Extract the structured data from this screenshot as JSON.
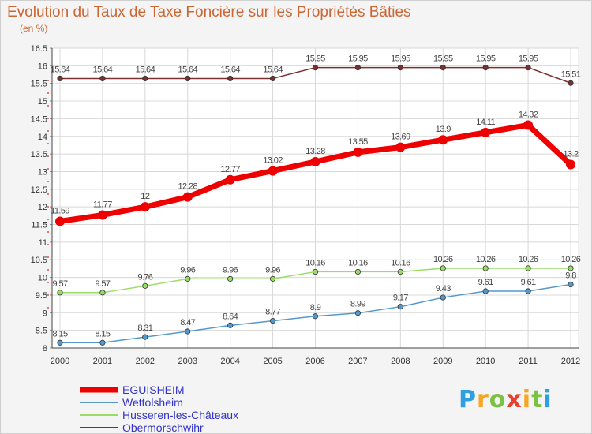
{
  "header": {
    "title": "Evolution du Taux de Taxe Foncière sur les Propriétés Bâties",
    "subtitle": "(en %)"
  },
  "logo": {
    "text": "Proxiti",
    "letters": [
      {
        "ch": "P",
        "color": "#2e9fe0"
      },
      {
        "ch": "r",
        "color": "#f5a623"
      },
      {
        "ch": "o",
        "color": "#7bc142"
      },
      {
        "ch": "x",
        "color": "#e8402a"
      },
      {
        "ch": "i",
        "color": "#f5a623"
      },
      {
        "ch": "t",
        "color": "#7bc142"
      },
      {
        "ch": "i",
        "color": "#2e9fe0"
      }
    ]
  },
  "chart_data": {
    "type": "line",
    "title": "Evolution du Taux de Taxe Foncière sur les Propriétés Bâties",
    "ylabel": "(en %)",
    "xlabel": "",
    "x": [
      "2000",
      "2001",
      "2002",
      "2003",
      "2004",
      "2005",
      "2006",
      "2007",
      "2008",
      "2009",
      "2010",
      "2011",
      "2012"
    ],
    "yticks": [
      "8",
      "8.5",
      "9",
      "9.5",
      "10",
      "10.5",
      "11",
      "11.5",
      "12",
      "12.5",
      "13",
      "13.5",
      "14",
      "14.5",
      "15",
      "15.5",
      "16",
      "16.5"
    ],
    "ylim": [
      8,
      16.5
    ],
    "grid": true,
    "legend_position": "bottom-left",
    "series": [
      {
        "name": "Obermorschwihr",
        "color": "#7a3030",
        "stroke": 1.5,
        "marker": 3.2,
        "values": [
          15.64,
          15.64,
          15.64,
          15.64,
          15.64,
          15.64,
          15.95,
          15.95,
          15.95,
          15.95,
          15.95,
          15.95,
          15.51
        ],
        "labels": [
          "15.64",
          "15.64",
          "15.64",
          "15.64",
          "15.64",
          "15.64",
          "15.95",
          "15.95",
          "15.95",
          "15.95",
          "15.95",
          "15.95",
          "15.51"
        ]
      },
      {
        "name": "EGUISHEIM",
        "color": "#ee0000",
        "stroke": 7,
        "marker": 6,
        "values": [
          11.59,
          11.77,
          12,
          12.28,
          12.77,
          13.02,
          13.28,
          13.55,
          13.69,
          13.9,
          14.11,
          14.32,
          13.2
        ],
        "labels": [
          "11.59",
          "11.77",
          "12",
          "12.28",
          "12.77",
          "13.02",
          "13.28",
          "13.55",
          "13.69",
          "13.9",
          "14.11",
          "14.32",
          "13.2"
        ]
      },
      {
        "name": "Husseren-les-Châteaux",
        "color": "#99dd66",
        "stroke": 1.5,
        "marker": 3.2,
        "values": [
          9.57,
          9.57,
          9.76,
          9.96,
          9.96,
          9.96,
          10.16,
          10.16,
          10.16,
          10.26,
          10.26,
          10.26,
          10.26
        ],
        "labels": [
          "9.57",
          "9.57",
          "9.76",
          "9.96",
          "9.96",
          "9.96",
          "10.16",
          "10.16",
          "10.16",
          "10.26",
          "10.26",
          "10.26",
          "10.26"
        ]
      },
      {
        "name": "Wettolsheim",
        "color": "#5599cc",
        "stroke": 1.5,
        "marker": 3.2,
        "values": [
          8.15,
          8.15,
          8.31,
          8.47,
          8.64,
          8.77,
          8.9,
          8.99,
          9.17,
          9.43,
          9.61,
          9.61,
          9.8
        ],
        "labels": [
          "8.15",
          "8.15",
          "8.31",
          "8.47",
          "8.64",
          "8.77",
          "8.9",
          "8.99",
          "9.17",
          "9.43",
          "9.61",
          "9.61",
          "9.8"
        ]
      }
    ],
    "legend_order": [
      "EGUISHEIM",
      "Wettolsheim",
      "Husseren-les-Châteaux",
      "Obermorschwihr"
    ]
  }
}
